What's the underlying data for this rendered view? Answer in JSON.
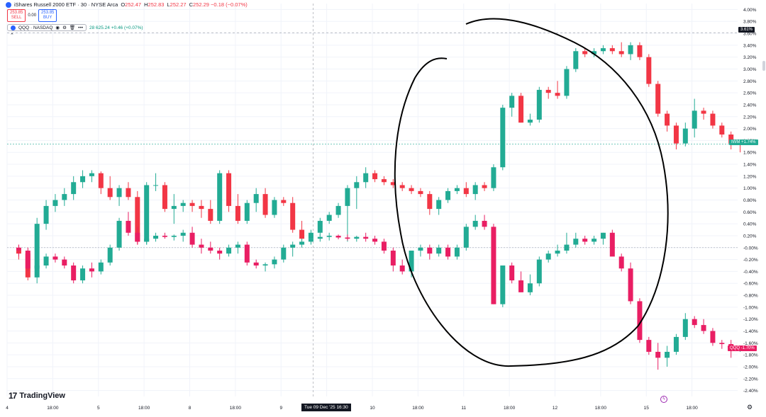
{
  "header": {
    "title": "iShares Russell 2000 ETF · 30 · NYSE Arca",
    "ohlc": [
      {
        "label": "O",
        "value": "252.47"
      },
      {
        "label": "H",
        "value": "252.83"
      },
      {
        "label": "L",
        "value": "252.27"
      },
      {
        "label": "C",
        "value": "252.29 −0.18 (−0.07%)"
      }
    ]
  },
  "trade": {
    "sell_price": "253.85",
    "sell_label": "SELL",
    "spread": "0.00",
    "buy_price": "253.85",
    "buy_label": "BUY"
  },
  "compare": {
    "symbol": "QQQ · NASDAQ",
    "value": "28  625.24  +0.46 (+0.07%)",
    "menu": "•••"
  },
  "logo": {
    "mark": "17",
    "text": "TradingView"
  },
  "crosshair_label": "Tue 09 Dec '25   16:30",
  "badges": {
    "top": "3.61%",
    "iwm_name": "IWM",
    "iwm_value": "+1.74%",
    "qqq_name": "QQQ",
    "qqq_value": "-1.70%"
  },
  "colors": {
    "up": "#22ab94",
    "down": "#f23645",
    "qqq_down": "#e91e63",
    "grid": "#f0f3fa",
    "zero_line": "#b2b5be",
    "drawing": "#000000"
  },
  "chart_data": {
    "type": "candlestick",
    "y_axis": {
      "unit": "%",
      "range": [
        -2.5,
        4.1
      ],
      "position": "right",
      "ticks": [
        "4.00%",
        "3.80%",
        "3.60%",
        "3.40%",
        "3.20%",
        "3.00%",
        "2.80%",
        "2.60%",
        "2.40%",
        "2.20%",
        "2.00%",
        "1.80%",
        "1.60%",
        "1.40%",
        "1.20%",
        "1.00%",
        "0.80%",
        "0.60%",
        "0.40%",
        "0.20%",
        "-0.00%",
        "-0.20%",
        "-0.40%",
        "-0.60%",
        "-0.80%",
        "-1.00%",
        "-1.20%",
        "-1.40%",
        "-1.60%",
        "-1.80%",
        "-2.00%",
        "-2.20%",
        "-2.40%"
      ]
    },
    "x_axis": {
      "range": [
        0,
        80
      ],
      "ticks": [
        {
          "x": 0,
          "label": "4"
        },
        {
          "x": 5,
          "label": "18:00"
        },
        {
          "x": 10,
          "label": "5"
        },
        {
          "x": 15,
          "label": "18:00"
        },
        {
          "x": 20,
          "label": "8"
        },
        {
          "x": 25,
          "label": "18:00"
        },
        {
          "x": 30,
          "label": "9"
        },
        {
          "x": 35,
          "label": "18:00"
        },
        {
          "x": 40,
          "label": "10"
        },
        {
          "x": 45,
          "label": "18:00"
        },
        {
          "x": 50,
          "label": "11"
        },
        {
          "x": 55,
          "label": "18:00"
        },
        {
          "x": 60,
          "label": "12"
        },
        {
          "x": 65,
          "label": "18:00"
        },
        {
          "x": 70,
          "label": "15"
        },
        {
          "x": 75,
          "label": "18:00"
        }
      ]
    },
    "reference_lines": [
      0,
      3.61,
      1.74
    ],
    "crosshair_x": 33.5,
    "series": [
      {
        "name": "IWM",
        "ohlc": [
          [
            -0.05,
            0.05,
            -0.2,
            -0.1
          ],
          [
            -0.1,
            -0.05,
            -0.55,
            -0.5
          ],
          [
            -0.5,
            0.5,
            -0.6,
            0.4
          ],
          [
            0.4,
            0.8,
            0.3,
            0.7
          ],
          [
            0.7,
            0.9,
            0.6,
            0.8
          ],
          [
            0.8,
            1.0,
            0.7,
            0.9
          ],
          [
            0.9,
            1.2,
            0.8,
            1.1
          ],
          [
            1.1,
            1.3,
            1.0,
            1.2
          ],
          [
            1.2,
            1.3,
            1.1,
            1.25
          ],
          [
            1.25,
            1.28,
            0.9,
            1.0
          ],
          [
            1.0,
            1.2,
            0.8,
            0.85
          ],
          [
            0.85,
            1.05,
            0.7,
            1.0
          ],
          [
            1.0,
            1.1,
            0.8,
            0.85
          ],
          [
            0.85,
            0.95,
            0.05,
            0.1
          ],
          [
            0.1,
            1.1,
            0.05,
            1.05
          ],
          [
            1.05,
            1.25,
            0.95,
            1.05
          ],
          [
            1.05,
            1.1,
            0.6,
            0.65
          ],
          [
            0.65,
            0.9,
            0.4,
            0.7
          ],
          [
            0.7,
            0.8,
            0.6,
            0.75
          ],
          [
            0.75,
            0.8,
            0.6,
            0.7
          ],
          [
            0.7,
            0.8,
            0.5,
            0.65
          ],
          [
            0.65,
            0.8,
            0.4,
            0.45
          ],
          [
            0.45,
            1.3,
            0.4,
            1.25
          ],
          [
            1.25,
            1.3,
            0.6,
            0.7
          ],
          [
            0.7,
            0.9,
            0.4,
            0.45
          ],
          [
            0.45,
            0.8,
            0.4,
            0.75
          ],
          [
            0.75,
            1.0,
            0.6,
            0.9
          ],
          [
            0.9,
            1.0,
            0.5,
            0.55
          ],
          [
            0.55,
            0.85,
            0.5,
            0.8
          ],
          [
            0.8,
            0.85,
            0.7,
            0.75
          ],
          [
            0.75,
            0.85,
            0.25,
            0.3
          ],
          [
            0.3,
            0.45,
            0.1,
            0.15
          ],
          [
            0.15,
            0.3,
            0.1,
            0.25
          ],
          [
            0.25,
            0.5,
            0.2,
            0.45
          ],
          [
            0.45,
            0.6,
            0.4,
            0.55
          ],
          [
            0.55,
            0.75,
            0.5,
            0.7
          ],
          [
            0.7,
            1.05,
            0.1,
            1.0
          ],
          [
            1.0,
            1.2,
            0.65,
            1.1
          ],
          [
            1.1,
            1.35,
            1.0,
            1.25
          ],
          [
            1.25,
            1.3,
            1.1,
            1.15
          ]
        ]
      },
      {
        "name": "IWM_cont",
        "ohlc": [
          [
            1.15,
            1.2,
            1.05,
            1.1
          ],
          [
            1.1,
            1.15,
            1.0,
            1.05
          ],
          [
            1.05,
            1.1,
            0.95,
            1.0
          ],
          [
            1.0,
            1.05,
            0.9,
            0.95
          ],
          [
            0.95,
            1.0,
            0.85,
            0.9
          ],
          [
            0.9,
            0.95,
            0.55,
            0.65
          ],
          [
            0.65,
            0.85,
            0.55,
            0.8
          ],
          [
            0.8,
            1.0,
            0.75,
            0.95
          ],
          [
            0.95,
            1.05,
            0.9,
            1.0
          ],
          [
            1.0,
            1.1,
            0.85,
            0.9
          ],
          [
            0.9,
            1.1,
            0.8,
            1.05
          ],
          [
            1.05,
            1.1,
            0.95,
            1.0
          ],
          [
            1.0,
            1.4,
            0.95,
            1.35
          ],
          [
            1.35,
            2.4,
            1.3,
            2.35
          ],
          [
            2.35,
            2.6,
            2.2,
            2.55
          ],
          [
            2.55,
            2.6,
            2.1,
            2.1
          ],
          [
            2.1,
            2.25,
            2.05,
            2.15
          ],
          [
            2.15,
            2.7,
            2.1,
            2.65
          ],
          [
            2.65,
            2.7,
            2.5,
            2.6
          ],
          [
            2.6,
            2.8,
            2.5,
            2.55
          ],
          [
            2.55,
            3.05,
            2.5,
            3.0
          ],
          [
            3.0,
            3.35,
            2.95,
            3.3
          ],
          [
            3.3,
            3.35,
            3.2,
            3.25
          ],
          [
            3.25,
            3.35,
            3.2,
            3.3
          ],
          [
            3.3,
            3.4,
            3.25,
            3.35
          ],
          [
            3.35,
            3.4,
            3.25,
            3.3
          ],
          [
            3.3,
            3.45,
            3.2,
            3.25
          ],
          [
            3.25,
            3.45,
            3.15,
            3.4
          ],
          [
            3.4,
            3.45,
            3.15,
            3.2
          ],
          [
            3.2,
            3.25,
            2.7,
            2.75
          ],
          [
            2.75,
            2.8,
            2.2,
            2.25
          ],
          [
            2.25,
            2.3,
            1.95,
            2.05
          ],
          [
            2.05,
            2.1,
            1.65,
            1.75
          ],
          [
            1.75,
            2.1,
            1.7,
            2.0
          ],
          [
            2.0,
            2.5,
            1.85,
            2.3
          ],
          [
            2.3,
            2.35,
            2.15,
            2.25
          ],
          [
            2.25,
            2.3,
            2.0,
            2.05
          ],
          [
            2.05,
            2.1,
            1.85,
            1.9
          ],
          [
            1.9,
            1.95,
            1.65,
            1.75
          ],
          [
            1.75,
            1.8,
            1.6,
            1.74
          ]
        ]
      },
      {
        "name": "QQQ",
        "ohlc": [
          [
            0.0,
            0.05,
            -0.15,
            -0.05
          ],
          [
            -0.05,
            0.0,
            -0.4,
            -0.35
          ],
          [
            -0.35,
            -0.25,
            -0.5,
            -0.3
          ],
          [
            -0.3,
            -0.1,
            -0.35,
            -0.15
          ],
          [
            -0.15,
            -0.1,
            -0.25,
            -0.2
          ],
          [
            -0.2,
            -0.15,
            -0.35,
            -0.3
          ],
          [
            -0.3,
            -0.25,
            -0.6,
            -0.55
          ],
          [
            -0.55,
            -0.3,
            -0.6,
            -0.35
          ],
          [
            -0.35,
            -0.25,
            -0.5,
            -0.4
          ],
          [
            -0.4,
            -0.2,
            -0.45,
            -0.25
          ],
          [
            -0.25,
            0.05,
            -0.3,
            0.0
          ],
          [
            0.0,
            0.5,
            -0.05,
            0.45
          ],
          [
            0.45,
            0.6,
            0.2,
            0.25
          ],
          [
            0.25,
            0.35,
            0.05,
            0.1
          ],
          [
            0.1,
            0.25,
            0.05,
            0.15
          ],
          [
            0.15,
            0.25,
            0.1,
            0.2
          ],
          [
            0.2,
            0.25,
            0.15,
            0.18
          ],
          [
            0.18,
            0.22,
            0.12,
            0.2
          ],
          [
            0.2,
            0.3,
            0.1,
            0.25
          ],
          [
            0.25,
            0.35,
            0.0,
            0.05
          ],
          [
            0.05,
            0.15,
            -0.1,
            0.0
          ],
          [
            0.0,
            0.1,
            -0.1,
            -0.05
          ],
          [
            -0.05,
            0.0,
            -0.2,
            -0.1
          ],
          [
            -0.1,
            0.05,
            -0.15,
            0.0
          ],
          [
            0.0,
            0.1,
            -0.1,
            0.05
          ],
          [
            0.05,
            0.1,
            -0.3,
            -0.25
          ],
          [
            -0.25,
            -0.2,
            -0.35,
            -0.3
          ],
          [
            -0.3,
            -0.25,
            -0.4,
            -0.28
          ],
          [
            -0.28,
            -0.15,
            -0.35,
            -0.2
          ],
          [
            -0.2,
            0.05,
            -0.25,
            0.0
          ],
          [
            0.0,
            0.1,
            -0.15,
            0.05
          ],
          [
            0.05,
            0.15,
            0.0,
            0.1
          ],
          [
            0.1,
            0.18,
            0.05,
            0.15
          ],
          [
            0.15,
            0.22,
            0.1,
            0.18
          ],
          [
            0.18,
            0.25,
            0.12,
            0.2
          ],
          [
            0.2,
            0.22,
            0.14,
            0.17
          ],
          [
            0.17,
            0.22,
            0.12,
            0.15
          ],
          [
            0.15,
            0.2,
            0.1,
            0.18
          ],
          [
            0.18,
            0.25,
            0.1,
            0.15
          ],
          [
            0.15,
            0.2,
            0.05,
            0.1
          ]
        ]
      },
      {
        "name": "QQQ_cont",
        "ohlc": [
          [
            0.1,
            0.15,
            -0.1,
            -0.05
          ],
          [
            -0.05,
            0.0,
            -0.4,
            -0.3
          ],
          [
            -0.3,
            -0.2,
            -0.45,
            -0.4
          ],
          [
            -0.4,
            -0.1,
            -0.5,
            -0.05
          ],
          [
            -0.05,
            0.05,
            -0.15,
            0.0
          ],
          [
            0.0,
            0.05,
            -0.2,
            -0.1
          ],
          [
            -0.1,
            0.05,
            -0.15,
            0.0
          ],
          [
            0.0,
            0.05,
            -0.2,
            -0.15
          ],
          [
            -0.15,
            0.05,
            -0.2,
            0.0
          ],
          [
            0.0,
            0.4,
            -0.05,
            0.35
          ],
          [
            0.35,
            0.55,
            0.3,
            0.45
          ],
          [
            0.45,
            0.55,
            0.3,
            0.35
          ],
          [
            0.35,
            0.4,
            -0.95,
            -0.95
          ],
          [
            -0.95,
            -0.3,
            -1.0,
            -0.3
          ],
          [
            -0.3,
            -0.25,
            -0.6,
            -0.55
          ],
          [
            -0.55,
            -0.4,
            -0.75,
            -0.75
          ],
          [
            -0.75,
            -0.45,
            -0.8,
            -0.6
          ],
          [
            -0.6,
            -0.15,
            -0.65,
            -0.2
          ],
          [
            -0.2,
            -0.05,
            -0.25,
            -0.1
          ],
          [
            -0.1,
            0.05,
            -0.15,
            -0.05
          ],
          [
            -0.05,
            0.25,
            -0.1,
            0.05
          ],
          [
            0.05,
            0.25,
            0.0,
            0.15
          ],
          [
            0.15,
            0.2,
            0.05,
            0.1
          ],
          [
            0.1,
            0.2,
            0.05,
            0.15
          ],
          [
            0.15,
            0.25,
            0.05,
            0.25
          ],
          [
            0.25,
            0.3,
            -0.1,
            -0.15
          ],
          [
            -0.15,
            -0.1,
            -0.4,
            -0.35
          ],
          [
            -0.35,
            -0.25,
            -0.95,
            -0.9
          ],
          [
            -0.9,
            -0.85,
            -1.6,
            -1.55
          ],
          [
            -1.55,
            -1.5,
            -1.8,
            -1.75
          ],
          [
            -1.75,
            -1.6,
            -2.05,
            -1.85
          ],
          [
            -1.85,
            -1.65,
            -2.0,
            -1.75
          ],
          [
            -1.75,
            -1.45,
            -1.8,
            -1.5
          ],
          [
            -1.5,
            -1.1,
            -1.55,
            -1.2
          ],
          [
            -1.2,
            -1.15,
            -1.35,
            -1.3
          ],
          [
            -1.3,
            -1.2,
            -1.45,
            -1.4
          ],
          [
            -1.4,
            -1.35,
            -1.65,
            -1.6
          ],
          [
            -1.6,
            -1.55,
            -1.7,
            -1.62
          ],
          [
            -1.62,
            -1.55,
            -1.85,
            -1.7
          ],
          [
            -1.7,
            -1.65,
            -1.75,
            -1.7
          ]
        ]
      }
    ],
    "annotation": "hand-drawn ellipse around the Dec 10–12 divergence"
  }
}
